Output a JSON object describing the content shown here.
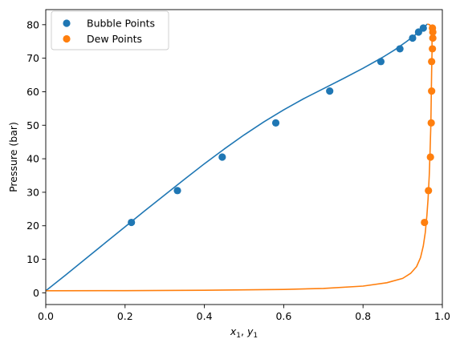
{
  "chart_data": {
    "type": "scatter",
    "xlabel_main": "x",
    "xlabel_sub1": "1",
    "xlabel_sep": ", ",
    "xlabel_main2": "y",
    "xlabel_sub2": "1",
    "ylabel": "Pressure (bar)",
    "xlim": [
      0.0,
      1.0
    ],
    "ylim": [
      -3.5,
      84.5
    ],
    "xticks": [
      "0.0",
      "0.2",
      "0.4",
      "0.6",
      "0.8",
      "1.0"
    ],
    "xtick_values": [
      0.0,
      0.2,
      0.4,
      0.6,
      0.8,
      1.0
    ],
    "yticks": [
      "0",
      "10",
      "20",
      "30",
      "40",
      "50",
      "60",
      "70",
      "80"
    ],
    "ytick_values": [
      0,
      10,
      20,
      30,
      40,
      50,
      60,
      70,
      80
    ],
    "legend_placement": "top-left",
    "grid": false,
    "series": [
      {
        "name": "Bubble Points",
        "kind": "scatter",
        "color": "#1f77b4",
        "points": [
          [
            0.216,
            21.0
          ],
          [
            0.332,
            30.5
          ],
          [
            0.445,
            40.5
          ],
          [
            0.58,
            50.7
          ],
          [
            0.716,
            60.2
          ],
          [
            0.845,
            69.0
          ],
          [
            0.893,
            72.8
          ],
          [
            0.925,
            76.0
          ],
          [
            0.94,
            77.8
          ],
          [
            0.952,
            79.0
          ]
        ]
      },
      {
        "name": "Dew Points",
        "kind": "scatter",
        "color": "#ff7f0e",
        "points": [
          [
            0.955,
            21.0
          ],
          [
            0.965,
            30.5
          ],
          [
            0.97,
            40.5
          ],
          [
            0.972,
            50.7
          ],
          [
            0.973,
            60.2
          ],
          [
            0.973,
            69.0
          ],
          [
            0.975,
            72.8
          ],
          [
            0.976,
            76.0
          ],
          [
            0.976,
            77.8
          ],
          [
            0.975,
            79.0
          ]
        ]
      }
    ],
    "curves": [
      {
        "kind": "line",
        "color": "#1f77b4",
        "points": [
          [
            0.0,
            0.6
          ],
          [
            0.05,
            5.3
          ],
          [
            0.1,
            10.1
          ],
          [
            0.15,
            14.9
          ],
          [
            0.2,
            19.7
          ],
          [
            0.25,
            24.5
          ],
          [
            0.3,
            29.2
          ],
          [
            0.35,
            33.9
          ],
          [
            0.4,
            38.5
          ],
          [
            0.45,
            42.9
          ],
          [
            0.5,
            47.1
          ],
          [
            0.55,
            51.0
          ],
          [
            0.6,
            54.6
          ],
          [
            0.65,
            57.9
          ],
          [
            0.7,
            60.9
          ],
          [
            0.75,
            63.9
          ],
          [
            0.8,
            67.0
          ],
          [
            0.85,
            70.3
          ],
          [
            0.88,
            72.5
          ],
          [
            0.91,
            75.0
          ],
          [
            0.93,
            76.8
          ],
          [
            0.945,
            78.2
          ],
          [
            0.955,
            79.3
          ],
          [
            0.962,
            80.2
          ]
        ]
      },
      {
        "kind": "line",
        "color": "#ff7f0e",
        "points": [
          [
            0.0,
            0.6
          ],
          [
            0.2,
            0.65
          ],
          [
            0.4,
            0.75
          ],
          [
            0.6,
            1.0
          ],
          [
            0.7,
            1.3
          ],
          [
            0.8,
            2.0
          ],
          [
            0.86,
            3.0
          ],
          [
            0.9,
            4.3
          ],
          [
            0.92,
            5.8
          ],
          [
            0.935,
            7.8
          ],
          [
            0.945,
            10.5
          ],
          [
            0.952,
            14.0
          ],
          [
            0.957,
            18.0
          ],
          [
            0.961,
            23.0
          ],
          [
            0.964,
            28.0
          ],
          [
            0.967,
            35.0
          ],
          [
            0.969,
            42.0
          ],
          [
            0.971,
            50.0
          ],
          [
            0.972,
            58.0
          ],
          [
            0.973,
            66.0
          ],
          [
            0.974,
            72.0
          ],
          [
            0.974,
            76.0
          ],
          [
            0.972,
            78.5
          ],
          [
            0.968,
            80.0
          ],
          [
            0.962,
            80.2
          ]
        ]
      }
    ]
  }
}
